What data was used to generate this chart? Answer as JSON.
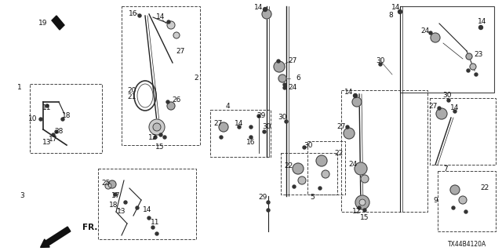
{
  "background_color": "#f5f5f0",
  "diagram_code": "TX44B4120A",
  "fig_width": 6.4,
  "fig_height": 3.2,
  "dpi": 100,
  "font_size": 6.5,
  "line_color": "#1a1a1a",
  "text_color": "#111111"
}
